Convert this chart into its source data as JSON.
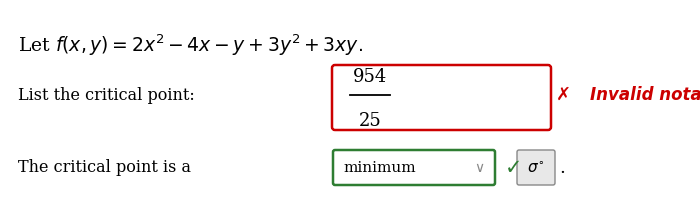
{
  "title_text": "Let $f(x, y) = 2x^2 - 4x - y + 3y^2 + 3xy.$",
  "label_critical": "List the critical point:",
  "fraction_numerator": "954",
  "fraction_denominator": "25",
  "x_mark": "✗",
  "invalid_text": "Invalid notation.",
  "bottom_label": "The critical point is a",
  "dropdown_text": "minimum",
  "dropdown_arrow": "⌄",
  "check_mark": "✓",
  "sigma_text": "$\\sigma^{\\circ}$",
  "period": ".",
  "bg_color": "#ffffff",
  "text_color": "#000000",
  "red_color": "#cc0000",
  "green_color": "#2e7d32",
  "gray_color": "#888888",
  "light_gray": "#e8e8e8"
}
